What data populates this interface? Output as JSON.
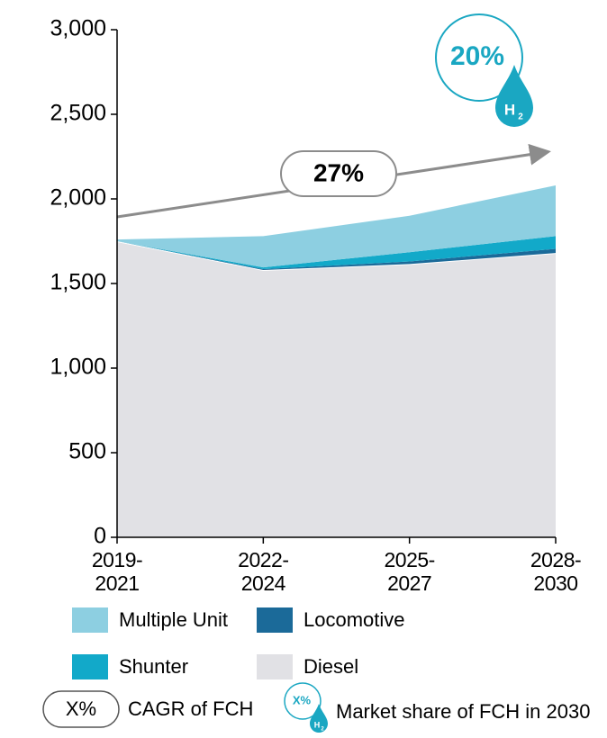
{
  "chart_data": {
    "type": "stacked_area",
    "categories": [
      "2019-2021",
      "2022-2024",
      "2025-2027",
      "2028-2030"
    ],
    "series": [
      {
        "name": "Diesel",
        "color": "#e1e1e5",
        "values": [
          1750,
          1580,
          1615,
          1680
        ]
      },
      {
        "name": "Locomotive",
        "color": "#1b6a99",
        "values": [
          0,
          5,
          15,
          25
        ]
      },
      {
        "name": "Shunter",
        "color": "#12a9c9",
        "values": [
          0,
          10,
          55,
          75
        ]
      },
      {
        "name": "Multiple Unit",
        "color": "#8dcfe1",
        "values": [
          10,
          185,
          215,
          300
        ]
      }
    ],
    "ylim": [
      0,
      3000
    ],
    "yticks": [
      0,
      500,
      {
        "value": 1000,
        "label": "1,000"
      },
      {
        "value": 1500,
        "label": "1,500"
      },
      {
        "value": 2000,
        "label": "2,000"
      },
      {
        "value": 2500,
        "label": "2,500"
      },
      {
        "value": 3000,
        "label": "3,000"
      }
    ],
    "annotations": {
      "cagr": "27%",
      "market_share": "20%",
      "h2_letter": "H",
      "h2_sub": "2"
    },
    "legend_notes": {
      "cagr_symbol": "X%",
      "cagr_text": "CAGR of FCH",
      "share_symbol": "X%",
      "share_text": "Market share of FCH in 2030",
      "h2_letter": "H",
      "h2_sub": "2"
    }
  }
}
